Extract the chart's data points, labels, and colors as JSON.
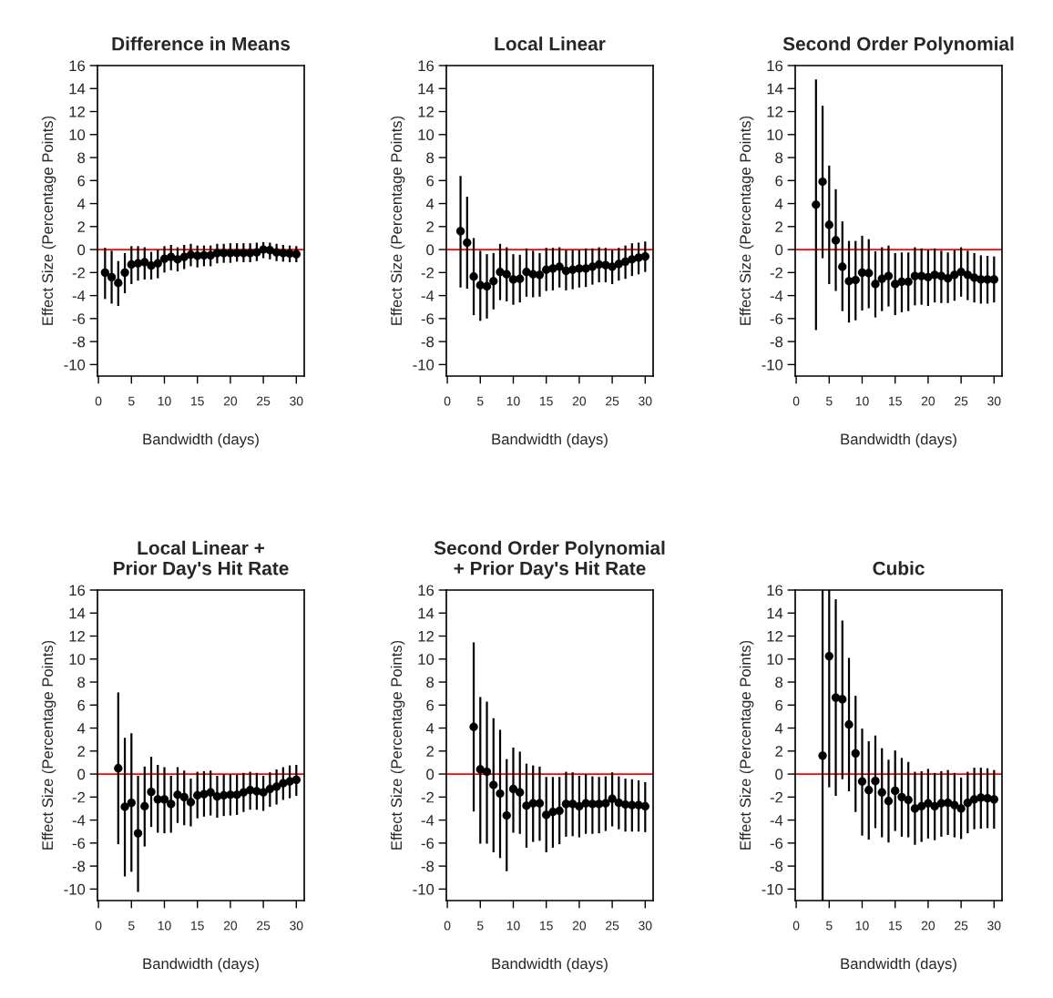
{
  "chart_data": [
    {
      "type": "scatter",
      "title": "Difference in Means",
      "xlabel": "Bandwidth (days)",
      "ylabel": "Effect Size (Percentage Points)",
      "xlim": [
        -0.15,
        31.2
      ],
      "ylim": [
        -11,
        16
      ],
      "xticks": [
        0,
        5,
        10,
        15,
        20,
        25,
        30
      ],
      "yticks": [
        -10,
        -8,
        -6,
        -4,
        -2,
        0,
        2,
        4,
        6,
        8,
        10,
        12,
        14,
        16
      ],
      "marker": "circle",
      "grid": false,
      "ref_lines": [
        {
          "axis": "y",
          "value": 0,
          "color": "#ff0000"
        }
      ],
      "series": [
        {
          "color": "#000000",
          "x": [
            1,
            2,
            3,
            4,
            5,
            6,
            7,
            8,
            9,
            10,
            11,
            12,
            13,
            14,
            15,
            16,
            17,
            18,
            19,
            20,
            21,
            22,
            23,
            24,
            25,
            26,
            27,
            28,
            29,
            30
          ],
          "values": [
            -2.0,
            -2.4,
            -2.9,
            -2.0,
            -1.3,
            -1.2,
            -1.1,
            -1.4,
            -1.2,
            -0.8,
            -0.65,
            -0.85,
            -0.65,
            -0.45,
            -0.55,
            -0.5,
            -0.5,
            -0.3,
            -0.3,
            -0.3,
            -0.3,
            -0.3,
            -0.3,
            -0.25,
            0,
            -0.05,
            -0.25,
            -0.3,
            -0.35,
            -0.4
          ],
          "errors": [
            [
              -4.3,
              0.15
            ],
            [
              -4.7,
              -0.1
            ],
            [
              -4.9,
              -1.0
            ],
            [
              -3.8,
              -0.3
            ],
            [
              -3.0,
              0.3
            ],
            [
              -2.7,
              0.3
            ],
            [
              -2.6,
              0.2
            ],
            [
              -2.6,
              -0.2
            ],
            [
              -2.5,
              0
            ],
            [
              -2.0,
              0.3
            ],
            [
              -1.8,
              0.4
            ],
            [
              -1.9,
              0.2
            ],
            [
              -1.7,
              0.4
            ],
            [
              -1.45,
              0.5
            ],
            [
              -1.55,
              0.35
            ],
            [
              -1.45,
              0.35
            ],
            [
              -1.45,
              0.35
            ],
            [
              -1.2,
              0.5
            ],
            [
              -1.15,
              0.5
            ],
            [
              -1.15,
              0.55
            ],
            [
              -1.05,
              0.55
            ],
            [
              -1.1,
              0.55
            ],
            [
              -1.1,
              0.55
            ],
            [
              -1.0,
              0.6
            ],
            [
              -0.75,
              0.65
            ],
            [
              -0.85,
              0.6
            ],
            [
              -1.0,
              0.5
            ],
            [
              -1.05,
              0.4
            ],
            [
              -1.1,
              0.35
            ],
            [
              -1.1,
              0.3
            ]
          ]
        }
      ]
    },
    {
      "type": "scatter",
      "title": "Local Linear",
      "xlabel": "Bandwidth (days)",
      "ylabel": "Effect Size (Percentage Points)",
      "xlim": [
        -0.15,
        31.2
      ],
      "ylim": [
        -11,
        16
      ],
      "xticks": [
        0,
        5,
        10,
        15,
        20,
        25,
        30
      ],
      "yticks": [
        -10,
        -8,
        -6,
        -4,
        -2,
        0,
        2,
        4,
        6,
        8,
        10,
        12,
        14,
        16
      ],
      "marker": "circle",
      "grid": false,
      "ref_lines": [
        {
          "axis": "y",
          "value": 0,
          "color": "#ff0000"
        }
      ],
      "series": [
        {
          "color": "#000000",
          "x": [
            2,
            3,
            4,
            5,
            6,
            7,
            8,
            9,
            10,
            11,
            12,
            13,
            14,
            15,
            16,
            17,
            18,
            19,
            20,
            21,
            22,
            23,
            24,
            25,
            26,
            27,
            28,
            29,
            30
          ],
          "values": [
            1.6,
            0.6,
            -2.35,
            -3.1,
            -3.2,
            -2.75,
            -1.95,
            -2.15,
            -2.6,
            -2.55,
            -1.95,
            -2.15,
            -2.2,
            -1.75,
            -1.65,
            -1.5,
            -1.85,
            -1.75,
            -1.65,
            -1.65,
            -1.5,
            -1.3,
            -1.35,
            -1.5,
            -1.25,
            -1.05,
            -0.85,
            -0.7,
            -0.6
          ],
          "errors": [
            [
              -3.3,
              6.4
            ],
            [
              -3.4,
              4.6
            ],
            [
              -5.7,
              1.0
            ],
            [
              -6.2,
              -0.1
            ],
            [
              -6.0,
              -0.4
            ],
            [
              -5.2,
              -0.3
            ],
            [
              -4.4,
              0.5
            ],
            [
              -4.5,
              0.2
            ],
            [
              -4.8,
              -0.4
            ],
            [
              -4.6,
              -0.45
            ],
            [
              -4.1,
              0.1
            ],
            [
              -4.15,
              -0.1
            ],
            [
              -4.1,
              -0.3
            ],
            [
              -3.6,
              0.15
            ],
            [
              -3.55,
              0.15
            ],
            [
              -3.3,
              0.2
            ],
            [
              -3.55,
              -0.05
            ],
            [
              -3.45,
              -0.05
            ],
            [
              -3.3,
              0
            ],
            [
              -3.25,
              0.1
            ],
            [
              -3.05,
              0.1
            ],
            [
              -2.85,
              0.2
            ],
            [
              -2.85,
              0.15
            ],
            [
              -3.0,
              -0.05
            ],
            [
              -2.7,
              0.15
            ],
            [
              -2.55,
              0.35
            ],
            [
              -2.3,
              0.55
            ],
            [
              -2.15,
              0.6
            ],
            [
              -1.95,
              0.7
            ]
          ]
        }
      ]
    },
    {
      "type": "scatter",
      "title": "Second Order Polynomial",
      "xlabel": "Bandwidth (days)",
      "ylabel": "Effect Size (Percentage Points)",
      "xlim": [
        -0.15,
        31.2
      ],
      "ylim": [
        -11,
        16
      ],
      "xticks": [
        0,
        5,
        10,
        15,
        20,
        25,
        30
      ],
      "yticks": [
        -10,
        -8,
        -6,
        -4,
        -2,
        0,
        2,
        4,
        6,
        8,
        10,
        12,
        14,
        16
      ],
      "marker": "circle",
      "grid": false,
      "ref_lines": [
        {
          "axis": "y",
          "value": 0,
          "color": "#ff0000"
        }
      ],
      "series": [
        {
          "color": "#000000",
          "x": [
            3,
            4,
            5,
            6,
            7,
            8,
            9,
            10,
            11,
            12,
            13,
            14,
            15,
            16,
            17,
            18,
            19,
            20,
            21,
            22,
            23,
            24,
            25,
            26,
            27,
            28,
            29,
            30
          ],
          "values": [
            3.9,
            5.9,
            2.15,
            0.8,
            -1.5,
            -2.75,
            -2.65,
            -2.0,
            -2.05,
            -3.0,
            -2.55,
            -2.3,
            -3.0,
            -2.8,
            -2.8,
            -2.3,
            -2.3,
            -2.4,
            -2.2,
            -2.3,
            -2.5,
            -2.2,
            -1.95,
            -2.2,
            -2.45,
            -2.6,
            -2.6,
            -2.6
          ],
          "errors": [
            [
              -7.0,
              14.8
            ],
            [
              -0.75,
              12.5
            ],
            [
              -3.0,
              7.3
            ],
            [
              -3.6,
              5.25
            ],
            [
              -5.35,
              2.45
            ],
            [
              -6.35,
              0.75
            ],
            [
              -6.15,
              0.75
            ],
            [
              -5.3,
              1.2
            ],
            [
              -5.1,
              0.9
            ],
            [
              -5.9,
              -0.15
            ],
            [
              -5.35,
              0.2
            ],
            [
              -4.95,
              0.35
            ],
            [
              -5.7,
              -0.3
            ],
            [
              -5.45,
              -0.25
            ],
            [
              -5.35,
              -0.25
            ],
            [
              -4.85,
              0.2
            ],
            [
              -4.8,
              0.1
            ],
            [
              -4.9,
              -0.05
            ],
            [
              -4.6,
              0.1
            ],
            [
              -4.65,
              -0.1
            ],
            [
              -4.65,
              -0.25
            ],
            [
              -4.45,
              -0.05
            ],
            [
              -4.1,
              0.2
            ],
            [
              -4.4,
              -0.1
            ],
            [
              -4.6,
              -0.3
            ],
            [
              -4.7,
              -0.5
            ],
            [
              -4.7,
              -0.55
            ],
            [
              -4.6,
              -0.6
            ]
          ]
        }
      ]
    },
    {
      "type": "scatter",
      "title": "Local Linear +\nPrior Day's Hit Rate",
      "xlabel": "Bandwidth (days)",
      "ylabel": "Effect Size (Percentage Points)",
      "xlim": [
        -0.15,
        31.2
      ],
      "ylim": [
        -11,
        16
      ],
      "xticks": [
        0,
        5,
        10,
        15,
        20,
        25,
        30
      ],
      "yticks": [
        -10,
        -8,
        -6,
        -4,
        -2,
        0,
        2,
        4,
        6,
        8,
        10,
        12,
        14,
        16
      ],
      "marker": "circle",
      "grid": false,
      "ref_lines": [
        {
          "axis": "y",
          "value": 0,
          "color": "#ff0000"
        }
      ],
      "series": [
        {
          "color": "#000000",
          "x": [
            3,
            4,
            5,
            6,
            7,
            8,
            9,
            10,
            11,
            12,
            13,
            14,
            15,
            16,
            17,
            18,
            19,
            20,
            21,
            22,
            23,
            24,
            25,
            26,
            27,
            28,
            29,
            30
          ],
          "values": [
            0.5,
            -2.85,
            -2.5,
            -5.15,
            -2.8,
            -1.55,
            -2.2,
            -2.2,
            -2.6,
            -1.8,
            -2.0,
            -2.45,
            -1.85,
            -1.75,
            -1.6,
            -1.95,
            -1.85,
            -1.8,
            -1.8,
            -1.6,
            -1.4,
            -1.5,
            -1.6,
            -1.3,
            -1.1,
            -0.8,
            -0.65,
            -0.5
          ],
          "errors": [
            [
              -6.1,
              7.1
            ],
            [
              -8.9,
              3.15
            ],
            [
              -8.5,
              3.55
            ],
            [
              -10.25,
              -0.15
            ],
            [
              -6.3,
              0.65
            ],
            [
              -4.6,
              1.5
            ],
            [
              -5.1,
              0.8
            ],
            [
              -5.15,
              0.6
            ],
            [
              -5.1,
              -0.15
            ],
            [
              -4.25,
              0.6
            ],
            [
              -4.45,
              0.3
            ],
            [
              -4.55,
              -0.4
            ],
            [
              -3.85,
              0.2
            ],
            [
              -3.7,
              0.25
            ],
            [
              -3.6,
              0.3
            ],
            [
              -3.8,
              -0.15
            ],
            [
              -3.65,
              -0.05
            ],
            [
              -3.6,
              0
            ],
            [
              -3.55,
              -0.05
            ],
            [
              -3.3,
              0.1
            ],
            [
              -3.1,
              0.2
            ],
            [
              -3.1,
              0.1
            ],
            [
              -3.2,
              -0.15
            ],
            [
              -2.85,
              0.15
            ],
            [
              -2.65,
              0.4
            ],
            [
              -2.25,
              0.6
            ],
            [
              -2.1,
              0.75
            ],
            [
              -1.9,
              0.8
            ]
          ]
        }
      ]
    },
    {
      "type": "scatter",
      "title": "Second Order Polynomial\n+ Prior Day's Hit Rate",
      "xlabel": "Bandwidth (days)",
      "ylabel": "Effect Size (Percentage Points)",
      "xlim": [
        -0.15,
        31.2
      ],
      "ylim": [
        -11,
        16
      ],
      "xticks": [
        0,
        5,
        10,
        15,
        20,
        25,
        30
      ],
      "yticks": [
        -10,
        -8,
        -6,
        -4,
        -2,
        0,
        2,
        4,
        6,
        8,
        10,
        12,
        14,
        16
      ],
      "marker": "circle",
      "grid": false,
      "ref_lines": [
        {
          "axis": "y",
          "value": 0,
          "color": "#ff0000"
        }
      ],
      "series": [
        {
          "color": "#000000",
          "x": [
            4,
            5,
            6,
            7,
            8,
            9,
            10,
            11,
            12,
            13,
            14,
            15,
            16,
            17,
            18,
            19,
            20,
            21,
            22,
            23,
            24,
            25,
            26,
            27,
            28,
            29,
            30
          ],
          "values": [
            4.1,
            0.4,
            0.2,
            -0.95,
            -1.7,
            -3.6,
            -1.3,
            -1.6,
            -2.75,
            -2.55,
            -2.55,
            -3.55,
            -3.3,
            -3.2,
            -2.6,
            -2.6,
            -2.8,
            -2.55,
            -2.6,
            -2.6,
            -2.55,
            -2.15,
            -2.5,
            -2.65,
            -2.7,
            -2.7,
            -2.8
          ],
          "errors": [
            [
              -3.25,
              11.45
            ],
            [
              -6.05,
              6.7
            ],
            [
              -6.05,
              6.3
            ],
            [
              -6.8,
              4.85
            ],
            [
              -7.3,
              3.85
            ],
            [
              -8.45,
              1.3
            ],
            [
              -5.1,
              2.3
            ],
            [
              -5.2,
              1.95
            ],
            [
              -6.4,
              0.9
            ],
            [
              -5.9,
              0.75
            ],
            [
              -5.8,
              0.65
            ],
            [
              -6.8,
              -0.25
            ],
            [
              -6.4,
              -0.25
            ],
            [
              -6.1,
              -0.25
            ],
            [
              -5.45,
              0.2
            ],
            [
              -5.4,
              0.15
            ],
            [
              -5.5,
              -0.15
            ],
            [
              -5.2,
              0
            ],
            [
              -5.2,
              -0.2
            ],
            [
              -5.15,
              -0.25
            ],
            [
              -4.95,
              -0.2
            ],
            [
              -4.55,
              0.15
            ],
            [
              -4.8,
              -0.2
            ],
            [
              -5.0,
              -0.4
            ],
            [
              -5.0,
              -0.45
            ],
            [
              -5.0,
              -0.55
            ],
            [
              -5.05,
              -0.7
            ]
          ]
        }
      ]
    },
    {
      "type": "scatter",
      "title": "Cubic",
      "xlabel": "Bandwidth (days)",
      "ylabel": "Effect Size (Percentage Points)",
      "xlim": [
        -0.15,
        31.2
      ],
      "ylim": [
        -11,
        16
      ],
      "xticks": [
        0,
        5,
        10,
        15,
        20,
        25,
        30
      ],
      "yticks": [
        -10,
        -8,
        -6,
        -4,
        -2,
        0,
        2,
        4,
        6,
        8,
        10,
        12,
        14,
        16
      ],
      "marker": "circle",
      "grid": false,
      "ref_lines": [
        {
          "axis": "y",
          "value": 0,
          "color": "#ff0000"
        }
      ],
      "series": [
        {
          "color": "#000000",
          "x": [
            4,
            5,
            6,
            7,
            8,
            9,
            10,
            11,
            12,
            13,
            14,
            15,
            16,
            17,
            18,
            19,
            20,
            21,
            22,
            23,
            24,
            25,
            26,
            27,
            28,
            29,
            30
          ],
          "values": [
            1.6,
            10.25,
            6.65,
            6.5,
            4.3,
            1.8,
            -0.65,
            -1.4,
            -0.6,
            -1.6,
            -2.35,
            -1.45,
            -2.0,
            -2.25,
            -3.0,
            -2.8,
            -2.55,
            -2.8,
            -2.55,
            -2.5,
            -2.7,
            -3.0,
            -2.5,
            -2.2,
            -2.05,
            -2.1,
            -2.2
          ],
          "errors": [
            [
              -11,
              16
            ],
            [
              -1.15,
              16
            ],
            [
              -1.9,
              15.2
            ],
            [
              -0.45,
              13.35
            ],
            [
              -1.5,
              10.1
            ],
            [
              -3.3,
              6.8
            ],
            [
              -5.35,
              3.95
            ],
            [
              -5.7,
              2.85
            ],
            [
              -4.7,
              3.35
            ],
            [
              -5.5,
              2.25
            ],
            [
              -5.95,
              1.25
            ],
            [
              -4.95,
              2.05
            ],
            [
              -5.45,
              1.4
            ],
            [
              -5.5,
              1.05
            ],
            [
              -6.15,
              0.2
            ],
            [
              -5.9,
              0.25
            ],
            [
              -5.6,
              0.45
            ],
            [
              -5.75,
              0.1
            ],
            [
              -5.45,
              0.25
            ],
            [
              -5.3,
              0.35
            ],
            [
              -5.5,
              0.1
            ],
            [
              -5.65,
              -0.3
            ],
            [
              -5.15,
              0.2
            ],
            [
              -4.8,
              0.55
            ],
            [
              -4.75,
              0.55
            ],
            [
              -4.7,
              0.5
            ],
            [
              -4.75,
              0.35
            ]
          ]
        }
      ]
    }
  ]
}
